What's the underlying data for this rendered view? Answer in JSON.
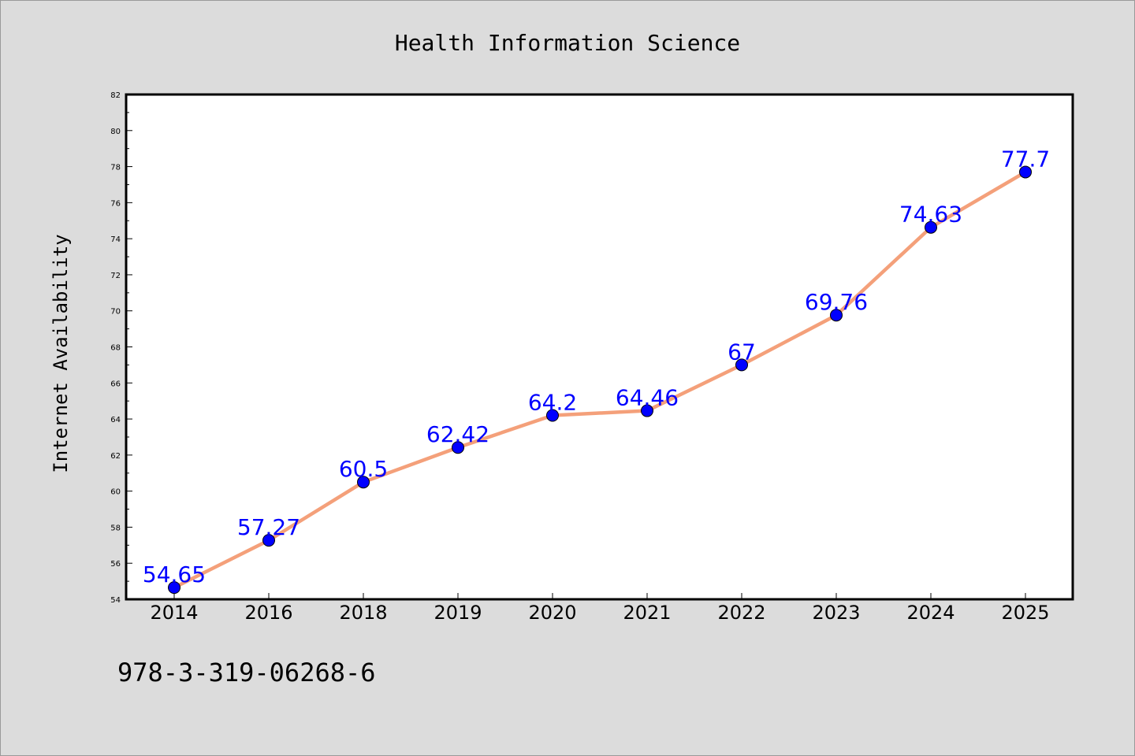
{
  "chart_data": {
    "type": "line",
    "title": "Health Information Science",
    "xlabel": "",
    "ylabel": "Internet Availability",
    "categories": [
      "2014",
      "2016",
      "2018",
      "2019",
      "2020",
      "2021",
      "2022",
      "2023",
      "2024",
      "2025"
    ],
    "series": [
      {
        "values": [
          54.65,
          57.27,
          60.5,
          62.42,
          64.2,
          64.46,
          67,
          69.76,
          74.63,
          77.7
        ],
        "labels": [
          "54.65",
          "57.27",
          "60.5",
          "62.42",
          "64.2",
          "64.46",
          "67",
          "69.76",
          "74.63",
          "77.7"
        ]
      }
    ],
    "ylim": [
      54,
      82
    ],
    "yticks": [
      "54",
      "56",
      "58",
      "60",
      "62",
      "64",
      "66",
      "68",
      "70",
      "72",
      "74",
      "76",
      "78",
      "80",
      "82"
    ],
    "grid": false,
    "legend": "none",
    "line_color": "#f4a07a",
    "marker_color": "#0000ff",
    "label_color": "#0000ff"
  },
  "footer_text": "978-3-319-06268-6"
}
